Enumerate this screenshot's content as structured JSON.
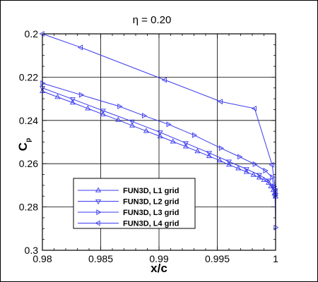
{
  "chart_data": {
    "type": "line",
    "title": "η = 0.20",
    "xlabel": "x/c",
    "ylabel": "C",
    "ylabel_sub": "p",
    "xlim": [
      0.98,
      1.0
    ],
    "ylim": [
      0.2,
      0.3
    ],
    "y_inverted": true,
    "grid": true,
    "legend_position": "lower-left",
    "x_ticks": [
      0.98,
      0.985,
      0.99,
      0.995,
      1.0
    ],
    "x_tick_labels": [
      "0.98",
      "0.985",
      "0.99",
      "0.995",
      "1"
    ],
    "y_ticks": [
      0.2,
      0.22,
      0.24,
      0.26,
      0.28,
      0.3
    ],
    "y_tick_labels": [
      "0.2",
      "0.22",
      "0.24",
      "0.26",
      "0.28",
      "0.3"
    ],
    "line_color": "#3a3af0",
    "series": [
      {
        "name": "FUN3D, L1 grid",
        "marker": "triangle-up",
        "x": [
          0.98,
          0.9813,
          0.9826,
          0.9839,
          0.9852,
          0.9865,
          0.9877,
          0.9889,
          0.9901,
          0.9912,
          0.9923,
          0.9933,
          0.9943,
          0.9952,
          0.996,
          0.9968,
          0.9975,
          0.9981,
          0.9986,
          0.999,
          0.9994,
          0.9996,
          0.9998,
          0.9999,
          1.0
        ],
        "y": [
          0.2265,
          0.2292,
          0.2318,
          0.2345,
          0.2372,
          0.2398,
          0.2424,
          0.2449,
          0.2474,
          0.2498,
          0.2521,
          0.2543,
          0.2565,
          0.2585,
          0.2605,
          0.2622,
          0.2638,
          0.2652,
          0.2664,
          0.2675,
          0.2688,
          0.2705,
          0.2722,
          0.2738,
          0.2752
        ]
      },
      {
        "name": "FUN3D, L2 grid",
        "marker": "triangle-down",
        "x": [
          0.98,
          0.9826,
          0.9852,
          0.9877,
          0.9901,
          0.9923,
          0.9943,
          0.996,
          0.9975,
          0.9986,
          0.9994,
          0.9998,
          0.99995,
          1.0
        ],
        "y": [
          0.225,
          0.2302,
          0.2355,
          0.2405,
          0.2455,
          0.2505,
          0.255,
          0.259,
          0.2625,
          0.2652,
          0.2678,
          0.2708,
          0.2725,
          0.2745
        ]
      },
      {
        "name": "FUN3D, L3 grid",
        "marker": "triangle-right",
        "x": [
          0.98,
          0.9833,
          0.9866,
          0.9887,
          0.9908,
          0.993,
          0.9953,
          0.9969,
          0.9982,
          0.9991,
          0.9997,
          0.99985,
          0.99995,
          1.0
        ],
        "y": [
          0.2228,
          0.2282,
          0.2335,
          0.2378,
          0.2418,
          0.2468,
          0.2528,
          0.2568,
          0.2602,
          0.2632,
          0.2662,
          0.2705,
          0.2748,
          0.2895
        ]
      },
      {
        "name": "FUN3D, L4 grid",
        "marker": "triangle-left",
        "x": [
          0.98,
          0.9833,
          0.9905,
          0.9953,
          0.9982,
          0.9997,
          1.0
        ],
        "y": [
          0.2,
          0.2063,
          0.2213,
          0.2313,
          0.2345,
          0.2605,
          0.2725
        ]
      }
    ]
  }
}
